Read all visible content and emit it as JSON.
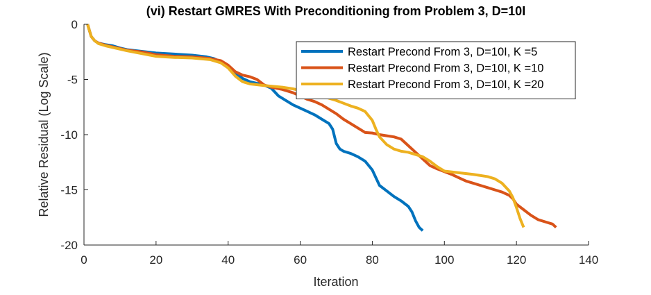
{
  "chart_data": {
    "type": "line",
    "title": "(vi) Restart GMRES With Preconditioning from Problem 3, D=10I",
    "xlabel": "Iteration",
    "ylabel": "Relative Residual (Log Scale)",
    "xlim": [
      0,
      140
    ],
    "ylim": [
      -20,
      0
    ],
    "xticks": [
      0,
      20,
      40,
      60,
      80,
      100,
      120,
      140
    ],
    "yticks": [
      0,
      -5,
      -10,
      -15,
      -20
    ],
    "grid": false,
    "legend_position": "top-right",
    "series": [
      {
        "name": "Restart Precond From 3, D=10I, K =5",
        "color": "#0072BD",
        "points": [
          [
            1,
            0
          ],
          [
            2,
            -1.1
          ],
          [
            3,
            -1.5
          ],
          [
            4,
            -1.7
          ],
          [
            6,
            -1.85
          ],
          [
            8,
            -1.95
          ],
          [
            10,
            -2.15
          ],
          [
            12,
            -2.3
          ],
          [
            16,
            -2.45
          ],
          [
            20,
            -2.6
          ],
          [
            25,
            -2.7
          ],
          [
            30,
            -2.8
          ],
          [
            34,
            -2.95
          ],
          [
            36,
            -3.1
          ],
          [
            38,
            -3.4
          ],
          [
            40,
            -3.9
          ],
          [
            42,
            -4.4
          ],
          [
            44,
            -4.9
          ],
          [
            46,
            -5.2
          ],
          [
            48,
            -5.35
          ],
          [
            50,
            -5.5
          ],
          [
            52,
            -5.8
          ],
          [
            54,
            -6.5
          ],
          [
            56,
            -6.9
          ],
          [
            58,
            -7.3
          ],
          [
            60,
            -7.6
          ],
          [
            62,
            -7.9
          ],
          [
            64,
            -8.2
          ],
          [
            66,
            -8.6
          ],
          [
            68,
            -9.0
          ],
          [
            69,
            -9.5
          ],
          [
            70,
            -10.8
          ],
          [
            71,
            -11.3
          ],
          [
            72,
            -11.5
          ],
          [
            74,
            -11.7
          ],
          [
            76,
            -12.0
          ],
          [
            78,
            -12.4
          ],
          [
            80,
            -13.2
          ],
          [
            82,
            -14.6
          ],
          [
            84,
            -15.1
          ],
          [
            86,
            -15.6
          ],
          [
            88,
            -16.0
          ],
          [
            90,
            -16.5
          ],
          [
            91,
            -17.0
          ],
          [
            92,
            -17.8
          ],
          [
            93,
            -18.4
          ],
          [
            94,
            -18.7
          ]
        ]
      },
      {
        "name": "Restart Precond From 3, D=10I, K =10",
        "color": "#D95319",
        "points": [
          [
            1,
            0
          ],
          [
            2,
            -1.1
          ],
          [
            3,
            -1.5
          ],
          [
            4,
            -1.7
          ],
          [
            6,
            -1.9
          ],
          [
            8,
            -2.05
          ],
          [
            10,
            -2.2
          ],
          [
            12,
            -2.35
          ],
          [
            16,
            -2.5
          ],
          [
            20,
            -2.75
          ],
          [
            25,
            -2.9
          ],
          [
            30,
            -2.95
          ],
          [
            35,
            -3.1
          ],
          [
            38,
            -3.3
          ],
          [
            40,
            -3.7
          ],
          [
            42,
            -4.3
          ],
          [
            44,
            -4.6
          ],
          [
            46,
            -4.75
          ],
          [
            48,
            -5.0
          ],
          [
            50,
            -5.5
          ],
          [
            52,
            -5.7
          ],
          [
            55,
            -5.9
          ],
          [
            58,
            -6.2
          ],
          [
            60,
            -6.5
          ],
          [
            62,
            -6.8
          ],
          [
            64,
            -7.0
          ],
          [
            66,
            -7.3
          ],
          [
            68,
            -7.7
          ],
          [
            70,
            -8.1
          ],
          [
            72,
            -8.6
          ],
          [
            74,
            -9.0
          ],
          [
            76,
            -9.4
          ],
          [
            78,
            -9.8
          ],
          [
            80,
            -9.85
          ],
          [
            82,
            -10.0
          ],
          [
            84,
            -10.1
          ],
          [
            86,
            -10.2
          ],
          [
            88,
            -10.4
          ],
          [
            90,
            -11.0
          ],
          [
            92,
            -11.6
          ],
          [
            94,
            -12.2
          ],
          [
            96,
            -12.8
          ],
          [
            98,
            -13.1
          ],
          [
            100,
            -13.35
          ],
          [
            102,
            -13.6
          ],
          [
            104,
            -13.9
          ],
          [
            106,
            -14.2
          ],
          [
            108,
            -14.4
          ],
          [
            110,
            -14.6
          ],
          [
            112,
            -14.8
          ],
          [
            114,
            -15.0
          ],
          [
            116,
            -15.2
          ],
          [
            118,
            -15.5
          ],
          [
            119,
            -15.8
          ],
          [
            120,
            -16.3
          ],
          [
            122,
            -16.8
          ],
          [
            124,
            -17.3
          ],
          [
            126,
            -17.7
          ],
          [
            128,
            -17.9
          ],
          [
            130,
            -18.1
          ],
          [
            131,
            -18.4
          ]
        ]
      },
      {
        "name": "Restart Precond From 3, D=10I, K =20",
        "color": "#EDB120",
        "points": [
          [
            1,
            0
          ],
          [
            2,
            -1.1
          ],
          [
            3,
            -1.5
          ],
          [
            4,
            -1.75
          ],
          [
            6,
            -1.95
          ],
          [
            8,
            -2.1
          ],
          [
            10,
            -2.25
          ],
          [
            12,
            -2.4
          ],
          [
            16,
            -2.65
          ],
          [
            20,
            -2.9
          ],
          [
            25,
            -3.0
          ],
          [
            30,
            -3.05
          ],
          [
            35,
            -3.2
          ],
          [
            38,
            -3.5
          ],
          [
            40,
            -3.95
          ],
          [
            42,
            -4.7
          ],
          [
            44,
            -5.2
          ],
          [
            46,
            -5.4
          ],
          [
            50,
            -5.55
          ],
          [
            55,
            -5.7
          ],
          [
            58,
            -5.85
          ],
          [
            60,
            -6.0
          ],
          [
            62,
            -6.2
          ],
          [
            64,
            -6.35
          ],
          [
            66,
            -6.5
          ],
          [
            68,
            -6.7
          ],
          [
            70,
            -6.9
          ],
          [
            72,
            -7.15
          ],
          [
            74,
            -7.4
          ],
          [
            76,
            -7.6
          ],
          [
            78,
            -7.9
          ],
          [
            80,
            -8.7
          ],
          [
            81,
            -9.5
          ],
          [
            82,
            -10.2
          ],
          [
            84,
            -10.9
          ],
          [
            86,
            -11.3
          ],
          [
            88,
            -11.5
          ],
          [
            90,
            -11.6
          ],
          [
            94,
            -12.0
          ],
          [
            96,
            -12.4
          ],
          [
            98,
            -12.9
          ],
          [
            100,
            -13.3
          ],
          [
            104,
            -13.45
          ],
          [
            108,
            -13.6
          ],
          [
            112,
            -13.8
          ],
          [
            114,
            -14.0
          ],
          [
            116,
            -14.4
          ],
          [
            118,
            -15.1
          ],
          [
            119,
            -15.7
          ],
          [
            120,
            -16.6
          ],
          [
            121,
            -17.6
          ],
          [
            122,
            -18.4
          ]
        ]
      }
    ]
  }
}
